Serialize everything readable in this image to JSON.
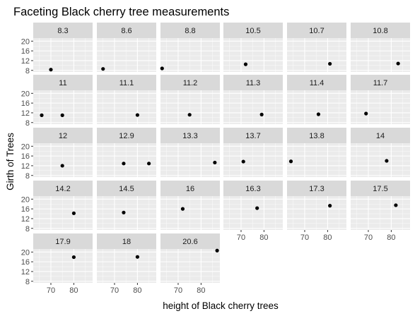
{
  "chart_data": {
    "type": "scatter",
    "title": "Faceting Black cherry tree measurements",
    "xlabel": "height of Black cherry trees",
    "ylabel": "Girth of Trees",
    "xlim": [
      62.3,
      88.2
    ],
    "ylim": [
      7.35,
      21.25
    ],
    "x_ticks": [
      70,
      80
    ],
    "y_ticks": [
      8,
      12,
      16,
      20
    ],
    "grid": true,
    "facet_by": "Girth",
    "facets": [
      {
        "label": "8.3",
        "points": [
          {
            "x": 70,
            "y": 8.3
          }
        ]
      },
      {
        "label": "8.6",
        "points": [
          {
            "x": 65,
            "y": 8.6
          }
        ]
      },
      {
        "label": "8.8",
        "points": [
          {
            "x": 63,
            "y": 8.8
          }
        ]
      },
      {
        "label": "10.5",
        "points": [
          {
            "x": 72,
            "y": 10.5
          }
        ]
      },
      {
        "label": "10.7",
        "points": [
          {
            "x": 81,
            "y": 10.7
          }
        ]
      },
      {
        "label": "10.8",
        "points": [
          {
            "x": 83,
            "y": 10.8
          }
        ]
      },
      {
        "label": "11",
        "points": [
          {
            "x": 66,
            "y": 11.0
          },
          {
            "x": 75,
            "y": 11.0
          }
        ]
      },
      {
        "label": "11.1",
        "points": [
          {
            "x": 80,
            "y": 11.1
          }
        ]
      },
      {
        "label": "11.2",
        "points": [
          {
            "x": 75,
            "y": 11.2
          }
        ]
      },
      {
        "label": "11.3",
        "points": [
          {
            "x": 79,
            "y": 11.3
          }
        ]
      },
      {
        "label": "11.4",
        "points": [
          {
            "x": 76,
            "y": 11.4
          }
        ]
      },
      {
        "label": "11.7",
        "points": [
          {
            "x": 69,
            "y": 11.7
          }
        ]
      },
      {
        "label": "12",
        "points": [
          {
            "x": 75,
            "y": 12.0
          }
        ]
      },
      {
        "label": "12.9",
        "points": [
          {
            "x": 74,
            "y": 12.9
          },
          {
            "x": 85,
            "y": 12.9
          }
        ]
      },
      {
        "label": "13.3",
        "points": [
          {
            "x": 86,
            "y": 13.3
          }
        ]
      },
      {
        "label": "13.7",
        "points": [
          {
            "x": 71,
            "y": 13.7
          }
        ]
      },
      {
        "label": "13.8",
        "points": [
          {
            "x": 64,
            "y": 13.8
          }
        ]
      },
      {
        "label": "14",
        "points": [
          {
            "x": 78,
            "y": 14.0
          }
        ]
      },
      {
        "label": "14.2",
        "points": [
          {
            "x": 80,
            "y": 14.2
          }
        ]
      },
      {
        "label": "14.5",
        "points": [
          {
            "x": 74,
            "y": 14.5
          }
        ]
      },
      {
        "label": "16",
        "points": [
          {
            "x": 72,
            "y": 16.0
          }
        ]
      },
      {
        "label": "16.3",
        "points": [
          {
            "x": 77,
            "y": 16.3
          }
        ]
      },
      {
        "label": "17.3",
        "points": [
          {
            "x": 81,
            "y": 17.3
          }
        ]
      },
      {
        "label": "17.5",
        "points": [
          {
            "x": 82,
            "y": 17.5
          }
        ]
      },
      {
        "label": "17.9",
        "points": [
          {
            "x": 80,
            "y": 17.9
          }
        ]
      },
      {
        "label": "18",
        "points": [
          {
            "x": 80,
            "y": 18.0
          }
        ]
      },
      {
        "label": "20.6",
        "points": [
          {
            "x": 87,
            "y": 20.6
          }
        ]
      }
    ]
  },
  "colors": {
    "panel_background": "#ebebeb",
    "strip_background": "#d9d9d9",
    "grid_major": "#ffffff",
    "point": "#000000"
  }
}
